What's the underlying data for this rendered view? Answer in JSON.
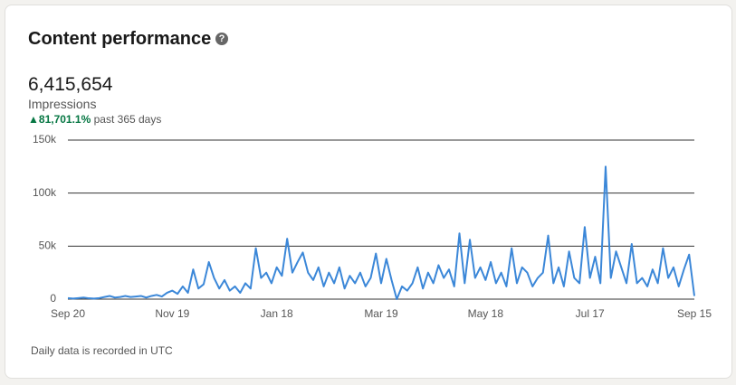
{
  "card": {
    "title": "Content performance",
    "total": "6,415,654",
    "metric": "Impressions",
    "change": "81,701.1%",
    "period": "past 365 days",
    "note": "Daily data is recorded in UTC"
  },
  "chart_data": {
    "type": "line",
    "color": "#3b87d8",
    "grid": true,
    "categories": [
      "Sep 20",
      null,
      null,
      null,
      null,
      null,
      null,
      null,
      null,
      null,
      null,
      null,
      null,
      null,
      null,
      null,
      null,
      null,
      null,
      null,
      "Nov 19",
      null,
      null,
      null,
      null,
      null,
      null,
      null,
      null,
      null,
      null,
      null,
      null,
      null,
      null,
      null,
      null,
      null,
      null,
      null,
      "Jan 18",
      null,
      null,
      null,
      null,
      null,
      null,
      null,
      null,
      null,
      null,
      null,
      null,
      null,
      null,
      null,
      null,
      null,
      null,
      null,
      "Mar 19",
      null,
      null,
      null,
      null,
      null,
      null,
      null,
      null,
      null,
      null,
      null,
      null,
      null,
      null,
      null,
      null,
      null,
      null,
      null,
      "May 18",
      null,
      null,
      null,
      null,
      null,
      null,
      null,
      null,
      null,
      null,
      null,
      null,
      null,
      null,
      null,
      null,
      null,
      null,
      null,
      "Jul 17",
      null,
      null,
      null,
      null,
      null,
      null,
      null,
      null,
      null,
      null,
      null,
      null,
      null,
      null,
      null,
      null,
      null,
      null,
      null,
      "Sep 15"
    ],
    "values": [
      1000,
      500,
      1000,
      1500,
      800,
      500,
      1000,
      2000,
      3000,
      1500,
      2000,
      3000,
      2000,
      2500,
      3000,
      1500,
      3000,
      4000,
      2500,
      6000,
      8000,
      5000,
      12000,
      6000,
      28000,
      10000,
      14000,
      35000,
      20000,
      10000,
      18000,
      8000,
      12000,
      6000,
      15000,
      10000,
      48000,
      20000,
      25000,
      15000,
      30000,
      22000,
      57000,
      25000,
      35000,
      44000,
      25000,
      18000,
      30000,
      12000,
      25000,
      15000,
      30000,
      10000,
      22000,
      15000,
      25000,
      12000,
      20000,
      43000,
      15000,
      38000,
      18000,
      0,
      12000,
      8000,
      15000,
      30000,
      10000,
      25000,
      15000,
      32000,
      20000,
      28000,
      12000,
      62000,
      15000,
      56000,
      20000,
      30000,
      18000,
      35000,
      15000,
      25000,
      12000,
      48000,
      15000,
      30000,
      25000,
      12000,
      20000,
      25000,
      60000,
      15000,
      30000,
      12000,
      45000,
      20000,
      15000,
      68000,
      20000,
      40000,
      15000,
      125000,
      20000,
      45000,
      30000,
      15000,
      52000,
      15000,
      20000,
      12000,
      28000,
      15000,
      48000,
      20000,
      30000,
      12000,
      28000,
      42000,
      3000
    ],
    "ylim": [
      0,
      150000
    ],
    "yticks": [
      0,
      {
        "value": 50000,
        "label": "50k"
      },
      {
        "value": 100000,
        "label": "100k"
      },
      {
        "value": 150000,
        "label": "150k"
      }
    ]
  }
}
